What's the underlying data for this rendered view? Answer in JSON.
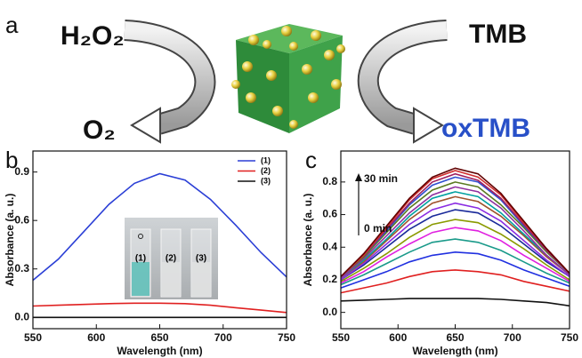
{
  "scheme": {
    "panel": "a",
    "reactant_left": "H₂O₂",
    "product_left": "O₂",
    "reactant_right": "TMB",
    "product_right": "oxTMB"
  },
  "chart_data": [
    {
      "type": "line",
      "panel": "b",
      "x_label": "Wavelength (nm)",
      "y_label": "Absorbance (a. u.)",
      "x": [
        550,
        570,
        590,
        610,
        630,
        650,
        670,
        690,
        710,
        730,
        750
      ],
      "xlim": [
        550,
        750
      ],
      "xticks": [
        550,
        600,
        650,
        700,
        750
      ],
      "ylim": [
        -0.07,
        1.03
      ],
      "yticks": [
        {
          "value": 0,
          "label": "0.0"
        },
        0.3,
        0.6,
        0.9
      ],
      "legend": "upper right",
      "series": [
        {
          "name": "(1)",
          "color": "#2b3fd6",
          "values": [
            0.23,
            0.36,
            0.53,
            0.7,
            0.83,
            0.89,
            0.85,
            0.73,
            0.57,
            0.4,
            0.25
          ]
        },
        {
          "name": "(2)",
          "color": "#e02020",
          "values": [
            0.07,
            0.075,
            0.08,
            0.085,
            0.088,
            0.088,
            0.085,
            0.075,
            0.06,
            0.045,
            0.03
          ]
        },
        {
          "name": "(3)",
          "color": "#111111",
          "values": [
            0,
            0,
            0,
            0,
            0,
            0,
            0,
            0,
            0,
            0,
            0
          ]
        }
      ],
      "inset_labels": [
        "(1)",
        "(2)",
        "(3)"
      ]
    },
    {
      "type": "line",
      "panel": "c",
      "x_label": "Wavelength (nm)",
      "y_label": "Absorbance (a. u.)",
      "x": [
        550,
        570,
        590,
        610,
        630,
        650,
        670,
        690,
        710,
        730,
        750
      ],
      "xlim": [
        550,
        750
      ],
      "xticks": [
        550,
        600,
        650,
        700,
        750
      ],
      "ylim": [
        -0.1,
        0.99
      ],
      "yticks": [
        {
          "value": 0,
          "label": "0.0"
        },
        0.2,
        0.4,
        0.6,
        0.8
      ],
      "annotations": [
        "30 min",
        "0 min"
      ],
      "series": [
        {
          "color": "#111111",
          "values": [
            0.07,
            0.075,
            0.08,
            0.085,
            0.085,
            0.085,
            0.085,
            0.08,
            0.07,
            0.06,
            0.04
          ]
        },
        {
          "color": "#e02020",
          "values": [
            0.12,
            0.15,
            0.18,
            0.22,
            0.25,
            0.26,
            0.25,
            0.23,
            0.19,
            0.16,
            0.13
          ]
        },
        {
          "color": "#2030e0",
          "values": [
            0.15,
            0.2,
            0.25,
            0.31,
            0.35,
            0.37,
            0.36,
            0.32,
            0.26,
            0.21,
            0.16
          ]
        },
        {
          "color": "#1a9a8a",
          "values": [
            0.17,
            0.23,
            0.3,
            0.37,
            0.43,
            0.45,
            0.43,
            0.38,
            0.31,
            0.24,
            0.18
          ]
        },
        {
          "color": "#e020e0",
          "values": [
            0.18,
            0.25,
            0.34,
            0.42,
            0.49,
            0.52,
            0.5,
            0.44,
            0.35,
            0.27,
            0.19
          ]
        },
        {
          "color": "#8a9a00",
          "values": [
            0.19,
            0.27,
            0.36,
            0.46,
            0.54,
            0.57,
            0.55,
            0.48,
            0.39,
            0.29,
            0.2
          ]
        },
        {
          "color": "#1a2a9a",
          "values": [
            0.2,
            0.29,
            0.4,
            0.51,
            0.59,
            0.63,
            0.61,
            0.53,
            0.42,
            0.31,
            0.22
          ]
        },
        {
          "color": "#8a2be2",
          "values": [
            0.2,
            0.3,
            0.42,
            0.54,
            0.63,
            0.67,
            0.64,
            0.56,
            0.44,
            0.32,
            0.22
          ]
        },
        {
          "color": "#a0522d",
          "values": [
            0.21,
            0.31,
            0.44,
            0.57,
            0.67,
            0.71,
            0.68,
            0.59,
            0.47,
            0.34,
            0.23
          ]
        },
        {
          "color": "#00a0a0",
          "values": [
            0.21,
            0.32,
            0.45,
            0.59,
            0.7,
            0.74,
            0.71,
            0.61,
            0.48,
            0.35,
            0.23
          ]
        },
        {
          "color": "#9030a0",
          "values": [
            0.21,
            0.33,
            0.47,
            0.61,
            0.72,
            0.77,
            0.74,
            0.64,
            0.5,
            0.35,
            0.23
          ]
        },
        {
          "color": "#5a7a20",
          "values": [
            0.22,
            0.34,
            0.49,
            0.64,
            0.75,
            0.8,
            0.77,
            0.66,
            0.52,
            0.37,
            0.24
          ]
        },
        {
          "color": "#3050d0",
          "values": [
            0.22,
            0.35,
            0.5,
            0.66,
            0.78,
            0.83,
            0.8,
            0.69,
            0.53,
            0.38,
            0.24
          ]
        },
        {
          "color": "#a02060",
          "values": [
            0.22,
            0.35,
            0.51,
            0.67,
            0.8,
            0.85,
            0.81,
            0.7,
            0.54,
            0.38,
            0.24
          ]
        },
        {
          "color": "#d03030",
          "values": [
            0.22,
            0.35,
            0.52,
            0.69,
            0.82,
            0.87,
            0.83,
            0.72,
            0.55,
            0.39,
            0.24
          ]
        },
        {
          "color": "#600000",
          "values": [
            0.22,
            0.36,
            0.53,
            0.7,
            0.83,
            0.885,
            0.85,
            0.73,
            0.56,
            0.39,
            0.24
          ]
        }
      ]
    }
  ]
}
